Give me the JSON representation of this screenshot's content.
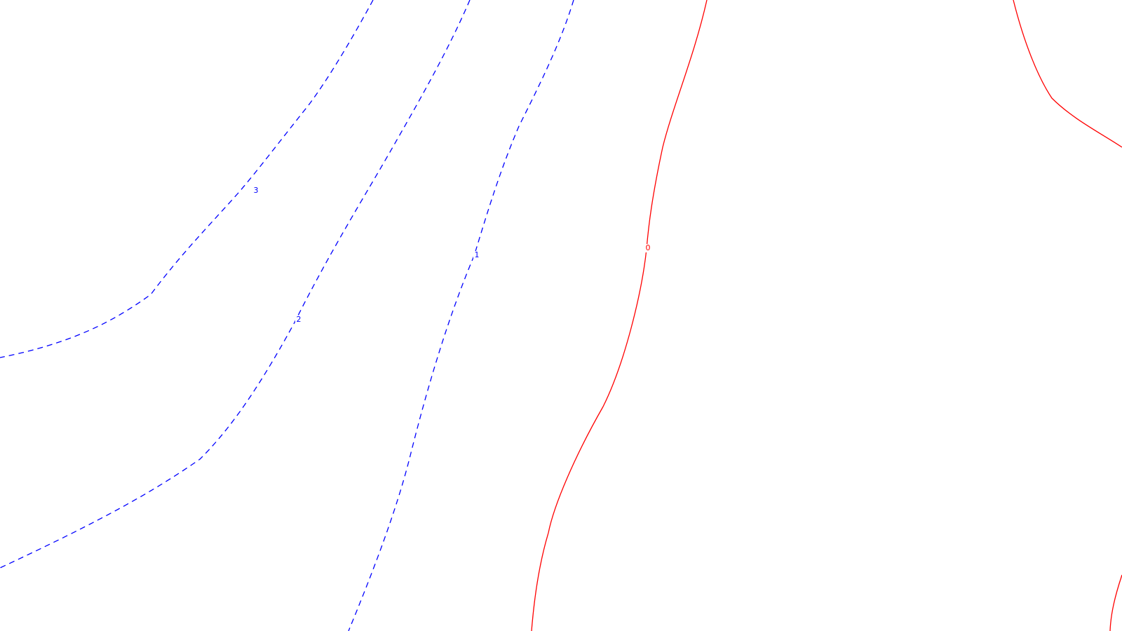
{
  "chart_data": {
    "type": "contour",
    "grid": false,
    "contours": [
      {
        "level": 3,
        "label": "3",
        "style": "dashed",
        "color": "#0000ff"
      },
      {
        "level": 2,
        "label": "2",
        "style": "dashed",
        "color": "#0000ff"
      },
      {
        "level": 1,
        "label": "1",
        "style": "dashed",
        "color": "#0000ff"
      },
      {
        "level": 0,
        "label": "0",
        "style": "solid",
        "color": "#ff0000"
      },
      {
        "level": 0,
        "label": "",
        "style": "solid",
        "color": "#ff0000"
      },
      {
        "level": 0,
        "label": "",
        "style": "solid",
        "color": "#ff0000"
      }
    ]
  }
}
